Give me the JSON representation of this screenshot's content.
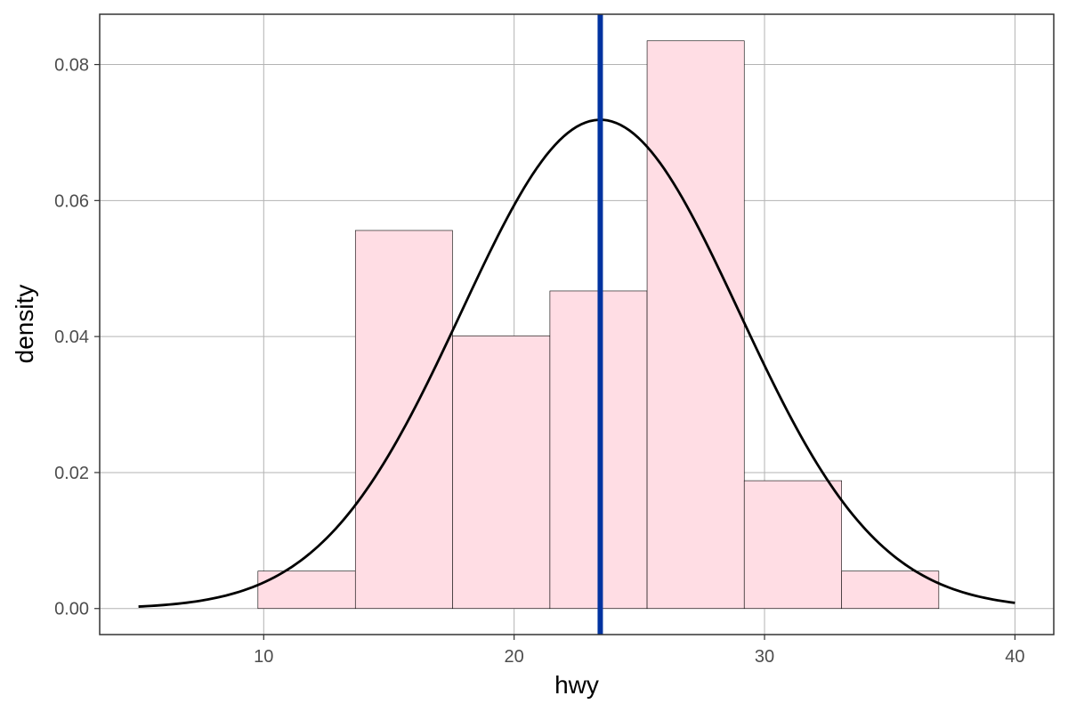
{
  "chart_data": {
    "type": "histogram",
    "title": "",
    "xlabel": "hwy",
    "ylabel": "density",
    "xlim": [
      3.45,
      41.55
    ],
    "ylim": [
      -0.00383,
      0.0874
    ],
    "x_ticks": [
      10,
      20,
      30,
      40
    ],
    "x_tick_labels": [
      "10",
      "20",
      "30",
      "40"
    ],
    "y_ticks": [
      0.0,
      0.02,
      0.04,
      0.06,
      0.08
    ],
    "y_tick_labels": [
      "0.00",
      "0.02",
      "0.04",
      "0.06",
      "0.08"
    ],
    "grid": true,
    "legend": "none",
    "bins": [
      {
        "x0": 9.77,
        "x1": 13.66,
        "density": 0.0055
      },
      {
        "x0": 13.66,
        "x1": 17.54,
        "density": 0.0556
      },
      {
        "x0": 17.54,
        "x1": 21.43,
        "density": 0.0401
      },
      {
        "x0": 21.43,
        "x1": 25.31,
        "density": 0.0467
      },
      {
        "x0": 25.31,
        "x1": 29.19,
        "density": 0.0835
      },
      {
        "x0": 29.19,
        "x1": 33.08,
        "density": 0.0188
      },
      {
        "x0": 33.08,
        "x1": 36.96,
        "density": 0.0055
      }
    ],
    "normal_curve": {
      "mean": 23.44,
      "sd": 5.55,
      "x_range": [
        5,
        40
      ]
    },
    "mean_line": {
      "x": 23.44
    },
    "colors": {
      "bar_fill": "#ffdde4",
      "bar_stroke": "#000000",
      "curve": "#000000",
      "mean_line": "#0033a0",
      "grid": "#b3b3b3",
      "panel_border": "#333333"
    }
  }
}
